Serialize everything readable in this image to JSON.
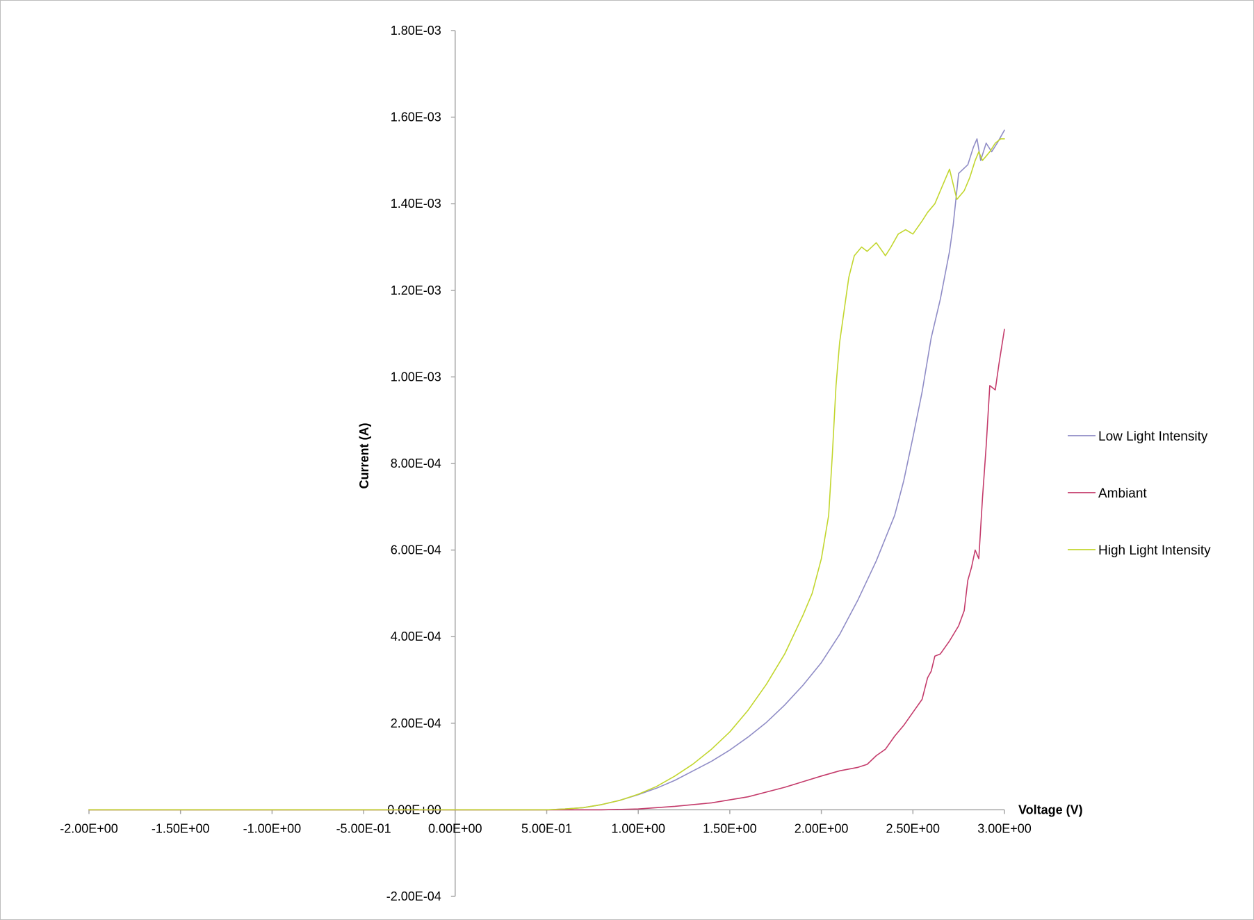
{
  "chart_data": {
    "type": "line",
    "xlabel": "Voltage (V)",
    "ylabel": "Current (A)",
    "xlim": [
      -2.0,
      3.0
    ],
    "ylim": [
      -0.0002,
      0.0018
    ],
    "x_ticks": [
      -2.0,
      -1.5,
      -1.0,
      -0.5,
      0.0,
      0.5,
      1.0,
      1.5,
      2.0,
      2.5,
      3.0
    ],
    "x_tick_labels": [
      "-2.00E+00",
      "-1.50E+00",
      "-1.00E+00",
      "-5.00E-01",
      "0.00E+00",
      "5.00E-01",
      "1.00E+00",
      "1.50E+00",
      "2.00E+00",
      "2.50E+00",
      "3.00E+00"
    ],
    "y_ticks": [
      -0.0002,
      0.0,
      0.0002,
      0.0004,
      0.0006,
      0.0008,
      0.001,
      0.0012,
      0.0014,
      0.0016,
      0.0018
    ],
    "y_tick_labels": [
      "-2.00E-04",
      "0.00E+00",
      "2.00E-04",
      "4.00E-04",
      "6.00E-04",
      "8.00E-04",
      "1.00E-03",
      "1.20E-03",
      "1.40E-03",
      "1.60E-03",
      "1.80E-03"
    ],
    "grid": false,
    "legend": "right",
    "series": [
      {
        "name": "Low Light Intensity",
        "color": "#8f8cc6",
        "x": [
          -2.0,
          -1.0,
          0.0,
          0.5,
          0.6,
          0.7,
          0.8,
          0.9,
          1.0,
          1.1,
          1.2,
          1.3,
          1.4,
          1.5,
          1.6,
          1.7,
          1.8,
          1.9,
          2.0,
          2.1,
          2.2,
          2.3,
          2.4,
          2.45,
          2.5,
          2.55,
          2.6,
          2.65,
          2.7,
          2.72,
          2.75,
          2.8,
          2.83,
          2.85,
          2.87,
          2.9,
          2.93,
          2.96,
          3.0
        ],
        "y": [
          0.0,
          0.0,
          0.0,
          0.0,
          2e-06,
          5e-06,
          1.2e-05,
          2.2e-05,
          3.5e-05,
          5e-05,
          6.8e-05,
          9e-05,
          0.000112,
          0.000138,
          0.000168,
          0.000202,
          0.000242,
          0.000288,
          0.00034,
          0.000405,
          0.000485,
          0.000575,
          0.00068,
          0.00076,
          0.00086,
          0.000965,
          0.00109,
          0.00118,
          0.00129,
          0.00135,
          0.00147,
          0.00149,
          0.00153,
          0.00155,
          0.0015,
          0.00154,
          0.00152,
          0.00154,
          0.00157
        ]
      },
      {
        "name": "Ambiant",
        "color": "#c43b6b",
        "x": [
          -2.0,
          -1.0,
          0.0,
          0.5,
          0.8,
          1.0,
          1.2,
          1.4,
          1.6,
          1.8,
          1.9,
          2.0,
          2.1,
          2.2,
          2.25,
          2.3,
          2.35,
          2.4,
          2.45,
          2.5,
          2.55,
          2.58,
          2.6,
          2.62,
          2.65,
          2.7,
          2.75,
          2.78,
          2.8,
          2.82,
          2.84,
          2.86,
          2.88,
          2.9,
          2.92,
          2.95,
          2.97,
          3.0
        ],
        "y": [
          0.0,
          0.0,
          0.0,
          0.0,
          0.0,
          2e-06,
          8e-06,
          1.6e-05,
          3e-05,
          5.2e-05,
          6.5e-05,
          7.8e-05,
          9e-05,
          9.8e-05,
          0.000105,
          0.000125,
          0.00014,
          0.00017,
          0.000195,
          0.000225,
          0.000255,
          0.000305,
          0.00032,
          0.000355,
          0.00036,
          0.00039,
          0.000425,
          0.00046,
          0.00053,
          0.00056,
          0.0006,
          0.00058,
          0.00072,
          0.00084,
          0.00098,
          0.00097,
          0.00103,
          0.00111
        ]
      },
      {
        "name": "High Light Intensity",
        "color": "#c2d62e",
        "x": [
          -2.0,
          -1.0,
          0.0,
          0.5,
          0.6,
          0.7,
          0.8,
          0.9,
          1.0,
          1.1,
          1.2,
          1.3,
          1.4,
          1.5,
          1.6,
          1.7,
          1.8,
          1.9,
          1.95,
          2.0,
          2.04,
          2.06,
          2.08,
          2.1,
          2.15,
          2.18,
          2.22,
          2.25,
          2.3,
          2.35,
          2.38,
          2.42,
          2.46,
          2.5,
          2.55,
          2.58,
          2.62,
          2.66,
          2.7,
          2.74,
          2.78,
          2.81,
          2.84,
          2.86,
          2.88,
          2.9,
          2.92,
          2.95,
          2.98,
          3.0
        ],
        "y": [
          0.0,
          0.0,
          0.0,
          0.0,
          2e-06,
          5e-06,
          1.2e-05,
          2.2e-05,
          3.6e-05,
          5.4e-05,
          7.8e-05,
          0.000106,
          0.00014,
          0.00018,
          0.00023,
          0.00029,
          0.00036,
          0.00045,
          0.0005,
          0.00058,
          0.00068,
          0.00082,
          0.00098,
          0.00108,
          0.00123,
          0.00128,
          0.0013,
          0.00129,
          0.00131,
          0.00128,
          0.0013,
          0.00133,
          0.00134,
          0.00133,
          0.00136,
          0.00138,
          0.0014,
          0.00144,
          0.00148,
          0.00141,
          0.00143,
          0.00146,
          0.0015,
          0.00152,
          0.0015,
          0.00151,
          0.00152,
          0.00154,
          0.00155,
          0.00155
        ]
      }
    ]
  }
}
